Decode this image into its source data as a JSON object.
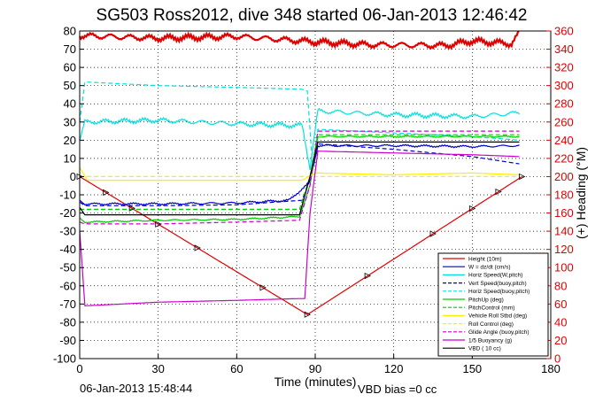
{
  "chart_data": {
    "type": "line",
    "title": "SG503 Ross2012, dive 348 started 06-Jan-2013 12:46:42",
    "xlabel": "Time (minutes)",
    "ylabel": "",
    "ylabel_right": "(+) Heading (°M)",
    "xlim": [
      0,
      180
    ],
    "ylim": [
      -100,
      80
    ],
    "ylim_right": [
      0,
      360
    ],
    "x_ticks": [
      "0",
      "30",
      "60",
      "90",
      "120",
      "150",
      "180"
    ],
    "y_ticks": [
      "-100",
      "-90",
      "-80",
      "-70",
      "-60",
      "-50",
      "-40",
      "-30",
      "-20",
      "-10",
      "0",
      "10",
      "20",
      "30",
      "40",
      "50",
      "60",
      "70",
      "80"
    ],
    "y_right_ticks": [
      "0",
      "20",
      "40",
      "60",
      "80",
      "100",
      "120",
      "140",
      "160",
      "180",
      "200",
      "220",
      "240",
      "260",
      "280",
      "300",
      "320",
      "340",
      "360"
    ],
    "grid": true,
    "legend_position": "bottom-right",
    "footer_left": "06-Jan-2013 15:48:44",
    "footer_right": "VBD bias =0 cc",
    "series": [
      {
        "name": "Height (10m)",
        "color": "#e00000",
        "style": "solid",
        "x": [
          0,
          87,
          169
        ],
        "values": [
          0,
          -75.8,
          0
        ]
      },
      {
        "name": "W = dz/dt (cm/s)",
        "color": "#0000cc",
        "style": "solid",
        "x": [
          0,
          2,
          30,
          60,
          80,
          88,
          91,
          120,
          150,
          168
        ],
        "values": [
          -13,
          -15,
          -15,
          -14.5,
          -13,
          -3,
          17,
          17,
          16.5,
          17
        ]
      },
      {
        "name": "Horiz Speed(W,pitch)",
        "color": "#00e0e0",
        "style": "solid",
        "x": [
          0,
          2,
          30,
          60,
          85,
          88,
          91,
          120,
          150,
          168
        ],
        "values": [
          20,
          30,
          31,
          29,
          28,
          5,
          36,
          34,
          33,
          35
        ]
      },
      {
        "name": "Vert Speed(buoy,pitch)",
        "color": "#0000cc",
        "style": "dashed",
        "x": [
          0,
          2,
          30,
          60,
          85,
          88,
          91,
          120,
          150,
          168
        ],
        "values": [
          -14,
          -16,
          -16,
          -15.5,
          -13,
          -2,
          18,
          15,
          11,
          7
        ]
      },
      {
        "name": "Horiz Speed(buoy,pitch)",
        "color": "#00e0e0",
        "style": "dashed",
        "x": [
          0,
          2,
          30,
          60,
          85,
          87,
          89,
          91,
          120,
          150,
          168
        ],
        "values": [
          30,
          52,
          50,
          49,
          48,
          47,
          5,
          26,
          24,
          22,
          20
        ]
      },
      {
        "name": "PitchUp (deg)",
        "color": "#00cc00",
        "style": "solid",
        "x": [
          0,
          2,
          30,
          60,
          84,
          88,
          91,
          120,
          150,
          168
        ],
        "values": [
          -23,
          -25,
          -24,
          -23.5,
          -22,
          -5,
          22,
          22,
          22,
          22
        ]
      },
      {
        "name": "PitchControl (mm)",
        "color": "#00cc00",
        "style": "dashed",
        "x": [
          0,
          2,
          84,
          88,
          91,
          168
        ],
        "values": [
          -18,
          -18,
          -18,
          0,
          23,
          23
        ]
      },
      {
        "name": "Vehicle Roll Stbd (deg)",
        "color": "#ffee00",
        "style": "solid",
        "x": [
          0,
          3,
          30,
          60,
          85,
          90,
          120,
          150,
          168
        ],
        "values": [
          5,
          -2,
          -2,
          -2,
          -2,
          2,
          1,
          2,
          1
        ]
      },
      {
        "name": "Roll Control (deg)",
        "color": "#ffee00",
        "style": "dashed",
        "x": [
          0,
          168
        ],
        "values": [
          0,
          0
        ]
      },
      {
        "name": "Glide Angle (buoy,pitch)",
        "color": "#cc00cc",
        "style": "dashed",
        "x": [
          0,
          2,
          30,
          60,
          84,
          88,
          91,
          120,
          150,
          168
        ],
        "values": [
          -25,
          -26,
          -26,
          -25,
          -24,
          -5,
          25,
          25,
          25,
          25
        ]
      },
      {
        "name": "1/5 Buoyancy (g)",
        "color": "#cc00cc",
        "style": "solid",
        "x": [
          0,
          2,
          30,
          60,
          84,
          86,
          88,
          91,
          120,
          150,
          168
        ],
        "values": [
          -30,
          -71,
          -69,
          -68,
          -67,
          -67,
          -20,
          14,
          13,
          12,
          11
        ]
      },
      {
        "name": "VBD ( 10 cc)",
        "color": "#000000",
        "style": "solid",
        "x": [
          0,
          2,
          84,
          88,
          91,
          168
        ],
        "values": [
          -17,
          -21,
          -21,
          0,
          19,
          19
        ]
      },
      {
        "name": "Heading",
        "axis": "right",
        "color": "#e00000",
        "style": "solid",
        "x": [
          0,
          30,
          60,
          90,
          110,
          140,
          150,
          165,
          168
        ],
        "values": [
          355,
          352,
          354,
          348,
          345,
          344,
          349,
          346,
          358
        ]
      }
    ]
  }
}
